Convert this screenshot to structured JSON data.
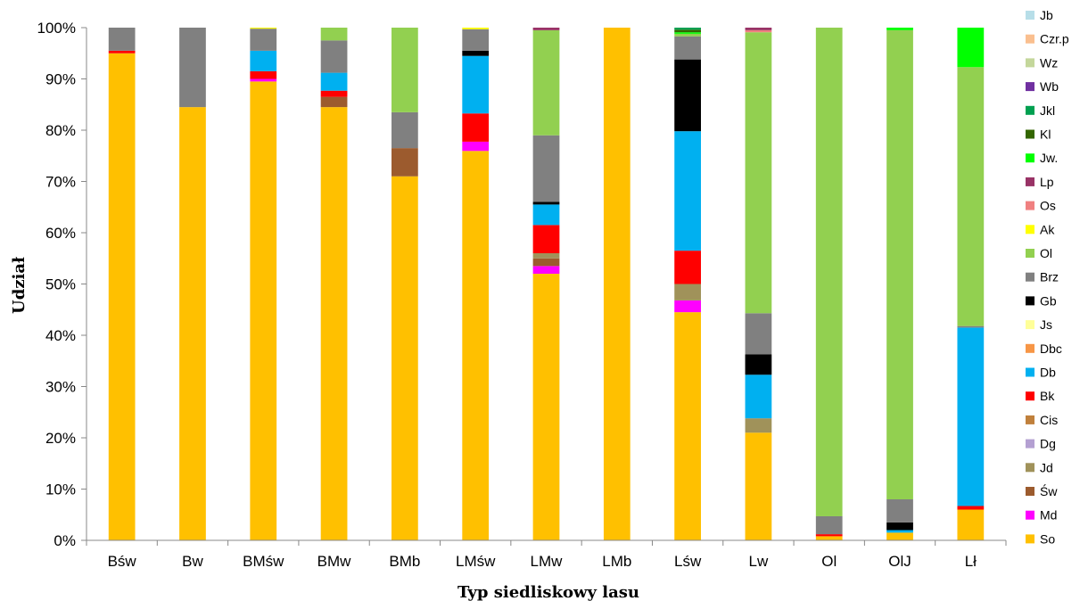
{
  "chart_data": {
    "type": "bar",
    "stacked": true,
    "xlabel": "Typ siedliskowy lasu",
    "ylabel": "Udział",
    "ylim": [
      0,
      100
    ],
    "yticks": [
      "0%",
      "10%",
      "20%",
      "30%",
      "40%",
      "50%",
      "60%",
      "70%",
      "80%",
      "90%",
      "100%"
    ],
    "grid": false,
    "legend_position": "right",
    "categories": [
      "Bśw",
      "Bw",
      "BMśw",
      "BMw",
      "BMb",
      "LMśw",
      "LMw",
      "LMb",
      "Lśw",
      "Lw",
      "Ol",
      "OlJ",
      "Lł"
    ],
    "series": [
      {
        "name": "So",
        "color": "#FFC000",
        "values": [
          95.0,
          84.5,
          89.5,
          84.5,
          71.0,
          75.8,
          52.0,
          100.0,
          44.5,
          21.0,
          0.8,
          1.5,
          6.0
        ]
      },
      {
        "name": "Md",
        "color": "#FF00FF",
        "values": [
          0,
          0,
          0.5,
          0,
          0,
          1.8,
          1.5,
          0,
          2.3,
          0,
          0,
          0,
          0
        ]
      },
      {
        "name": "Św",
        "color": "#9C5B2E",
        "values": [
          0,
          0,
          0,
          2.0,
          5.5,
          0,
          1.5,
          0,
          0,
          0,
          0,
          0,
          0
        ]
      },
      {
        "name": "Jd",
        "color": "#A0925A",
        "values": [
          0,
          0,
          0,
          0,
          0,
          0,
          1.0,
          0,
          3.2,
          2.8,
          0,
          0,
          0
        ]
      },
      {
        "name": "Dg",
        "color": "#B4A0D2",
        "values": [
          0,
          0,
          0,
          0,
          0,
          0,
          0,
          0,
          0,
          0,
          0,
          0,
          0
        ]
      },
      {
        "name": "Cis",
        "color": "#C0803C",
        "values": [
          0,
          0,
          0,
          0,
          0,
          0,
          0,
          0,
          0,
          0,
          0,
          0,
          0
        ]
      },
      {
        "name": "Bk",
        "color": "#FF0000",
        "values": [
          0.5,
          0,
          1.5,
          1.2,
          0,
          5.5,
          5.5,
          0,
          6.5,
          0,
          0.4,
          0,
          0.7
        ]
      },
      {
        "name": "Db",
        "color": "#00B0F0",
        "values": [
          0,
          0,
          4.0,
          3.5,
          0,
          11.2,
          4.0,
          0,
          23.3,
          8.5,
          0,
          0.5,
          34.8
        ]
      },
      {
        "name": "Dbc",
        "color": "#F79646",
        "values": [
          0,
          0,
          0,
          0,
          0,
          0,
          0,
          0,
          0,
          0,
          0,
          0,
          0
        ]
      },
      {
        "name": "Js",
        "color": "#FFFF99",
        "values": [
          0,
          0,
          0,
          0,
          0,
          0,
          0,
          0,
          0,
          0,
          0,
          0,
          0
        ]
      },
      {
        "name": "Gb",
        "color": "#000000",
        "values": [
          0,
          0,
          0,
          0,
          0,
          1.0,
          0.5,
          0,
          14.0,
          4.0,
          0,
          1.5,
          0
        ]
      },
      {
        "name": "Brz",
        "color": "#808080",
        "values": [
          4.5,
          15.5,
          4.3,
          6.3,
          7.0,
          4.2,
          13.0,
          0,
          4.5,
          8.0,
          3.5,
          4.5,
          0.3
        ]
      },
      {
        "name": "Ol",
        "color": "#92D050",
        "values": [
          0,
          0,
          0,
          2.5,
          16.5,
          0,
          20.5,
          0,
          0.5,
          54.8,
          95.3,
          91.5,
          50.5
        ]
      },
      {
        "name": "Ak",
        "color": "#FFFF00",
        "values": [
          0,
          0,
          0.2,
          0,
          0,
          0.3,
          0,
          0,
          0,
          0,
          0,
          0,
          0
        ]
      },
      {
        "name": "Os",
        "color": "#F08080",
        "values": [
          0,
          0,
          0,
          0,
          0,
          0,
          0,
          0,
          0,
          0.4,
          0,
          0,
          0
        ]
      },
      {
        "name": "Lp",
        "color": "#993366",
        "values": [
          0,
          0,
          0,
          0,
          0,
          0,
          0.5,
          0,
          0,
          0.5,
          0,
          0,
          0
        ]
      },
      {
        "name": "Jw.",
        "color": "#00FF00",
        "values": [
          0,
          0,
          0,
          0,
          0,
          0,
          0,
          0,
          0.3,
          0,
          0,
          0.5,
          7.7
        ]
      },
      {
        "name": "Kl",
        "color": "#336600",
        "values": [
          0,
          0,
          0,
          0,
          0,
          0,
          0,
          0,
          0.5,
          0,
          0,
          0,
          0
        ]
      },
      {
        "name": "Jkl",
        "color": "#00A050",
        "values": [
          0,
          0,
          0,
          0,
          0,
          0,
          0,
          0,
          0.4,
          0,
          0,
          0,
          0
        ]
      },
      {
        "name": "Wb",
        "color": "#7030A0",
        "values": [
          0,
          0,
          0,
          0,
          0,
          0,
          0,
          0,
          0,
          0,
          0,
          0,
          0
        ]
      },
      {
        "name": "Wz",
        "color": "#C4D79B",
        "values": [
          0,
          0,
          0,
          0,
          0,
          0,
          0,
          0,
          0,
          0,
          0,
          0,
          0
        ]
      },
      {
        "name": "Czr.p",
        "color": "#FABF8F",
        "values": [
          0,
          0,
          0,
          0,
          0,
          0,
          0,
          0,
          0,
          0,
          0,
          0,
          0
        ]
      },
      {
        "name": "Jb",
        "color": "#B7DEE8",
        "values": [
          0,
          0,
          0,
          0,
          0,
          0,
          0,
          0,
          0,
          0,
          0,
          0,
          0
        ]
      }
    ]
  }
}
